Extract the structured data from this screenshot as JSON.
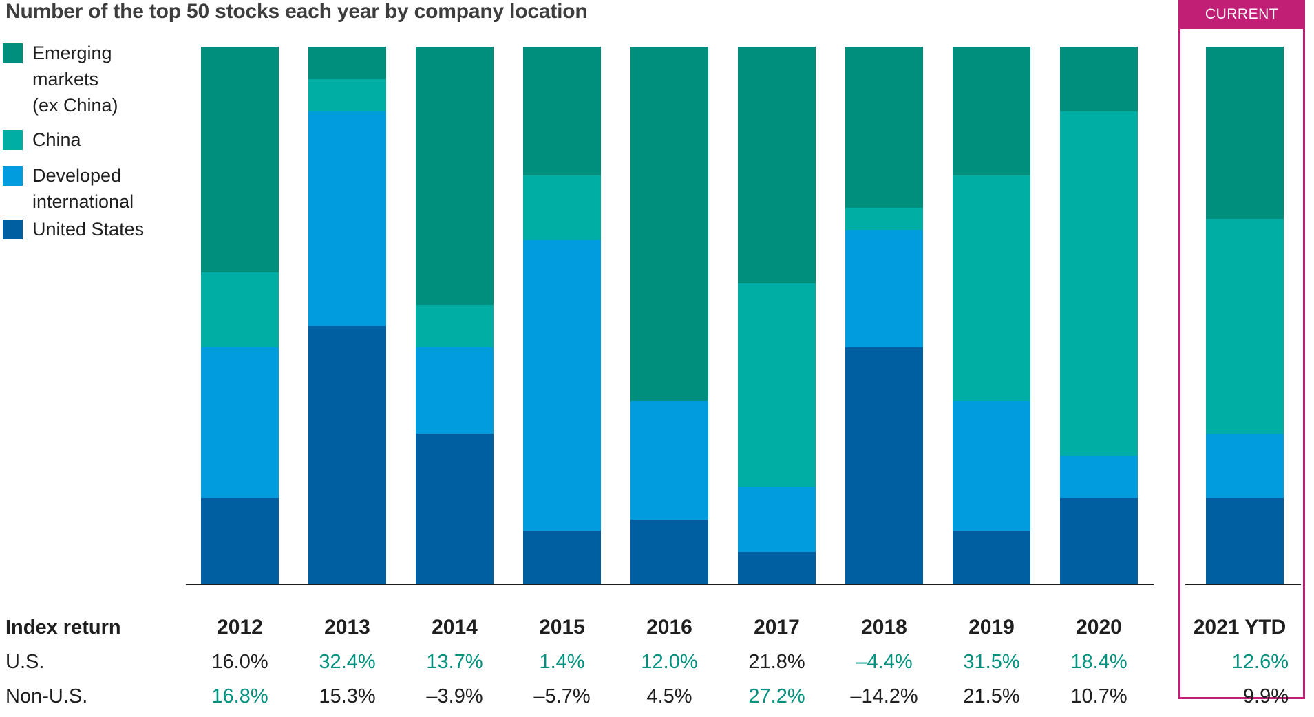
{
  "chart_data": {
    "type": "bar",
    "stacked": true,
    "title": "Number of the top 50 stocks each year by company location",
    "unit_total_per_bar": 50,
    "categories": [
      "2012",
      "2013",
      "2014",
      "2015",
      "2016",
      "2017",
      "2018",
      "2019",
      "2020",
      "2021 YTD"
    ],
    "series": [
      {
        "name": "Emerging markets (ex China)",
        "color": "#008F7D",
        "values": [
          21,
          3,
          24,
          12,
          33,
          22,
          15,
          12,
          6,
          16
        ]
      },
      {
        "name": "China",
        "color": "#00AEA4",
        "values": [
          7,
          3,
          4,
          6,
          0,
          19,
          2,
          21,
          32,
          20
        ]
      },
      {
        "name": "Developed international",
        "color": "#009CDE",
        "values": [
          14,
          20,
          8,
          27,
          11,
          6,
          11,
          12,
          4,
          6
        ]
      },
      {
        "name": "United States",
        "color": "#005FA0",
        "values": [
          8,
          24,
          14,
          5,
          6,
          3,
          22,
          5,
          8,
          8
        ]
      }
    ],
    "legend_position": "left",
    "ylim": [
      0,
      50
    ],
    "grid": false
  },
  "legend": [
    {
      "lines": [
        "Emerging",
        "markets",
        "(ex China)"
      ],
      "color": "#008F7D"
    },
    {
      "lines": [
        "China"
      ],
      "color": "#00AEA4"
    },
    {
      "lines": [
        "Developed",
        "international"
      ],
      "color": "#009CDE"
    },
    {
      "lines": [
        "United States"
      ],
      "color": "#005FA0"
    }
  ],
  "current": {
    "label": "CURRENT",
    "box_color": "#C11F76"
  },
  "table": {
    "index_label": "Index return",
    "highlight_color": "#00917F",
    "text_color": "#1F1F1F",
    "rows": [
      {
        "label": "U.S.",
        "values": [
          {
            "v": "16.0%",
            "hl": false
          },
          {
            "v": "32.4%",
            "hl": true
          },
          {
            "v": "13.7%",
            "hl": true
          },
          {
            "v": "1.4%",
            "hl": true
          },
          {
            "v": "12.0%",
            "hl": true
          },
          {
            "v": "21.8%",
            "hl": false
          },
          {
            "v": "–4.4%",
            "hl": true
          },
          {
            "v": "31.5%",
            "hl": true
          },
          {
            "v": "18.4%",
            "hl": true
          },
          {
            "v": "12.6%",
            "hl": true
          }
        ]
      },
      {
        "label": "Non-U.S.",
        "values": [
          {
            "v": "16.8%",
            "hl": true
          },
          {
            "v": "15.3%",
            "hl": false
          },
          {
            "v": "–3.9%",
            "hl": false
          },
          {
            "v": "–5.7%",
            "hl": false
          },
          {
            "v": "4.5%",
            "hl": false
          },
          {
            "v": "27.2%",
            "hl": true
          },
          {
            "v": "–14.2%",
            "hl": false
          },
          {
            "v": "21.5%",
            "hl": false
          },
          {
            "v": "10.7%",
            "hl": false
          },
          {
            "v": "9.9%",
            "hl": false
          }
        ]
      }
    ]
  }
}
